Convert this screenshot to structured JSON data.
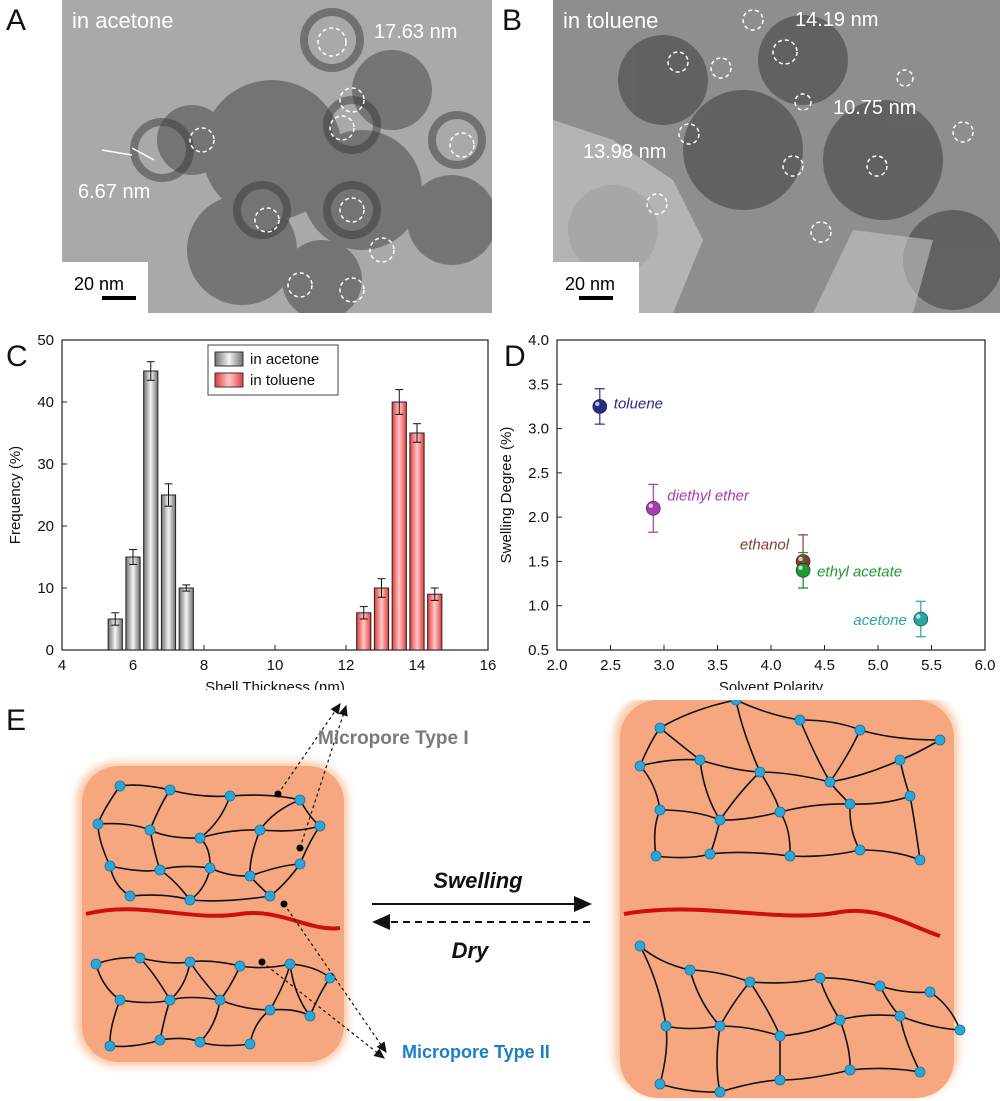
{
  "panels": {
    "A": {
      "letter": "A",
      "caption": "in acetone",
      "scale_bar": "20 nm",
      "measurements": [
        "17.63 nm",
        "6.67 nm"
      ]
    },
    "B": {
      "letter": "B",
      "caption": "in toluene",
      "scale_bar": "20 nm",
      "measurements": [
        "14.19 nm",
        "10.75 nm",
        "13.98 nm"
      ]
    },
    "C": {
      "letter": "C"
    },
    "D": {
      "letter": "D"
    },
    "E": {
      "letter": "E",
      "micropore_type_1": "Micropore  Type I",
      "micropore_type_2": "Micropore Type II",
      "swelling": "Swelling",
      "dry": "Dry"
    }
  },
  "colors": {
    "acetone_bar": "#b5b5b5",
    "toluene_bar": "#f0504f",
    "toluene_point": "#2a2a8c",
    "diethyl_ether_point": "#a63cb0",
    "ethanol_point": "#8a3b2c",
    "ethyl_acetate_point": "#1f9a2f",
    "acetone_point": "#27a7a4",
    "shell_fill": "#f7a77f",
    "node": "#2ba6d9",
    "red_line": "#cc1010",
    "micropore_type_1_text": "#7a7a7a",
    "micropore_type_2_text": "#1a7fc7"
  },
  "chart_data": [
    {
      "type": "bar",
      "panel": "C",
      "xlabel": "Shell Thickness (nm)",
      "ylabel": "Frequency (%)",
      "xlim": [
        4,
        16
      ],
      "ylim": [
        0,
        50
      ],
      "x_ticks": [
        4,
        6,
        8,
        10,
        12,
        14,
        16
      ],
      "y_ticks": [
        0,
        10,
        20,
        30,
        40,
        50
      ],
      "legend_position": "top-center",
      "series": [
        {
          "name": "in acetone",
          "x": [
            5.5,
            6.0,
            6.5,
            7.0,
            7.5
          ],
          "values": [
            5,
            15,
            45,
            25,
            10
          ],
          "errors": [
            1.0,
            1.2,
            1.5,
            1.8,
            0.5
          ]
        },
        {
          "name": "in toluene",
          "x": [
            12.5,
            13.0,
            13.5,
            14.0,
            14.5
          ],
          "values": [
            6,
            10,
            40,
            35,
            9
          ],
          "errors": [
            1.0,
            1.5,
            2.0,
            1.5,
            1.0
          ]
        }
      ]
    },
    {
      "type": "scatter",
      "panel": "D",
      "xlabel": "Solvent Polarity",
      "ylabel": "Swelling Degree (%)",
      "xlim": [
        2.0,
        6.0
      ],
      "ylim": [
        0.5,
        4.0
      ],
      "x_ticks": [
        "2.0",
        "2.5",
        "3.0",
        "3.5",
        "4.0",
        "4.5",
        "5.0",
        "5.5",
        "6.0"
      ],
      "y_ticks": [
        "0.5",
        "1.0",
        "1.5",
        "2.0",
        "2.5",
        "3.0",
        "3.5",
        "4.0"
      ],
      "points": [
        {
          "label": "toluene",
          "x": 2.4,
          "y": 3.25,
          "err": 0.2
        },
        {
          "label": "diethyl ether",
          "x": 2.9,
          "y": 2.1,
          "err": 0.27
        },
        {
          "label": "ethanol",
          "x": 4.3,
          "y": 1.5,
          "err": 0.3
        },
        {
          "label": "ethyl acetate",
          "x": 4.3,
          "y": 1.4,
          "err": 0.2
        },
        {
          "label": "acetone",
          "x": 5.4,
          "y": 0.85,
          "err": 0.2
        }
      ]
    }
  ]
}
